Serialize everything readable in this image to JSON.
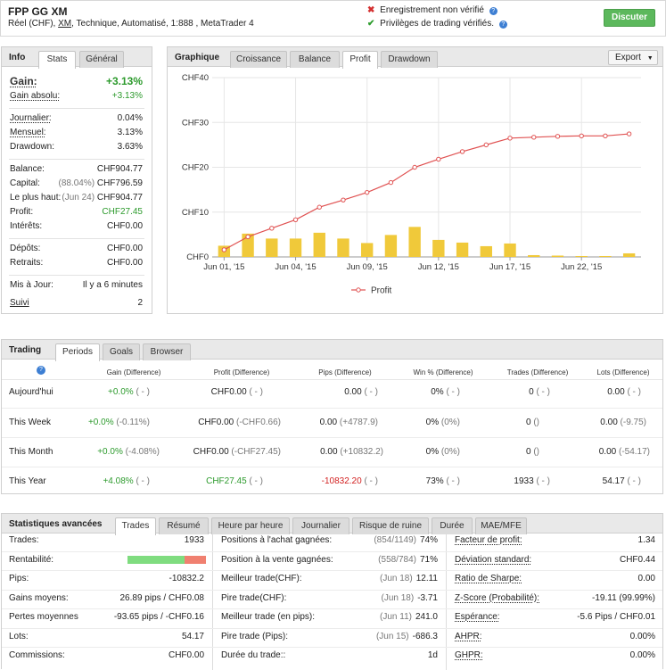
{
  "header": {
    "title": "FPP GG XM",
    "subtitle_prefix": "Réel (CHF), ",
    "broker": "XM",
    "subtitle_suffix": ", Technique, Automatisé, 1:888 , MetaTrader 4",
    "status_unverified": "Enregistrement non vérifié",
    "status_verified": "Privilèges de trading vérifiés.",
    "discuss_button": "Discuter"
  },
  "info": {
    "tabs": [
      "Info",
      "Stats",
      "Général"
    ],
    "gain_label": "Gain:",
    "gain_value": "+3.13%",
    "gain_abs_label": "Gain absolu:",
    "gain_abs_value": "+3.13%",
    "daily_label": "Journalier:",
    "daily_value": "0.04%",
    "monthly_label": "Mensuel:",
    "monthly_value": "3.13%",
    "drawdown_label": "Drawdown:",
    "drawdown_value": "3.63%",
    "balance_label": "Balance:",
    "balance_value": "CHF904.77",
    "capital_label": "Capital:",
    "capital_pct": "(88.04%)",
    "capital_value": "CHF796.59",
    "highest_label": "Le plus haut:",
    "highest_date": "(Jun 24)",
    "highest_value": "CHF904.77",
    "profit_label": "Profit:",
    "profit_value": "CHF27.45",
    "interest_label": "Intérêts:",
    "interest_value": "CHF0.00",
    "deposits_label": "Dépôts:",
    "deposits_value": "CHF0.00",
    "withdrawals_label": "Retraits:",
    "withdrawals_value": "CHF0.00",
    "updated_label": "Mis à Jour:",
    "updated_value": "Il y a 6 minutes",
    "follow_label": "Suivi",
    "follow_value": "2"
  },
  "graph": {
    "title": "Graphique",
    "tabs": [
      "Croissance",
      "Balance",
      "Profit",
      "Drawdown"
    ],
    "active_tab": "Profit",
    "export_label": "Export"
  },
  "chart_data": {
    "type": "line",
    "x": [
      "Jun 01, '15",
      "Jun 02, '15",
      "Jun 03, '15",
      "Jun 04, '15",
      "Jun 05, '15",
      "Jun 08, '15",
      "Jun 09, '15",
      "Jun 10, '15",
      "Jun 11, '15",
      "Jun 12, '15",
      "Jun 15, '15",
      "Jun 16, '15",
      "Jun 17, '15",
      "Jun 18, '15",
      "Jun 19, '15",
      "Jun 22, '15",
      "Jun 23, '15",
      "Jun 24, '15"
    ],
    "x_ticks": [
      "Jun 01, '15",
      "Jun 04, '15",
      "Jun 09, '15",
      "Jun 12, '15",
      "Jun 17, '15",
      "Jun 22, '15"
    ],
    "y_ticks": [
      "CHF0",
      "CHF10",
      "CHF20",
      "CHF30",
      "CHF40"
    ],
    "ylim": [
      0,
      40
    ],
    "series": [
      {
        "name": "Profit",
        "type": "line",
        "color": "#e05252",
        "values": [
          1.6,
          4.5,
          6.4,
          8.3,
          11.1,
          12.7,
          14.4,
          16.6,
          20.0,
          21.8,
          23.5,
          25.0,
          26.5,
          26.7,
          26.9,
          27.0,
          27.0,
          27.45
        ]
      },
      {
        "type": "bar",
        "color": "#f0c93a",
        "values": [
          2.5,
          5.2,
          4.1,
          4.1,
          5.4,
          4.1,
          3.1,
          4.9,
          6.7,
          3.8,
          3.2,
          2.4,
          3.0,
          0.4,
          0.3,
          0.2,
          0.2,
          0.8
        ]
      }
    ],
    "legend": "bottom-center"
  },
  "trading": {
    "title": "Trading",
    "tabs": [
      "Periods",
      "Goals",
      "Browser"
    ],
    "help_icon": "?",
    "columns": [
      "Gain (Difference)",
      "Profit (Difference)",
      "Pips (Difference)",
      "Win % (Difference)",
      "Trades (Difference)",
      "Lots (Difference)"
    ],
    "rows": [
      {
        "label": "Aujourd'hui",
        "gain": "+0.0%",
        "gain_diff": "( - )",
        "profit": "CHF0.00",
        "profit_diff": "( - )",
        "pips": "0.00",
        "pips_diff": "( - )",
        "win": "0%",
        "win_diff": "( - )",
        "trades": "0",
        "trades_diff": "( - )",
        "lots": "0.00",
        "lots_diff": "( - )"
      },
      {
        "label": "This Week",
        "gain": "+0.0%",
        "gain_diff": "(-0.11%)",
        "profit": "CHF0.00",
        "profit_diff": "(-CHF0.66)",
        "pips": "0.00",
        "pips_diff": "(+4787.9)",
        "win": "0%",
        "win_diff": "(0%)",
        "trades": "0",
        "trades_diff": "()",
        "lots": "0.00",
        "lots_diff": "(-9.75)"
      },
      {
        "label": "This Month",
        "gain": "+0.0%",
        "gain_diff": "(-4.08%)",
        "profit": "CHF0.00",
        "profit_diff": "(-CHF27.45)",
        "pips": "0.00",
        "pips_diff": "(+10832.2)",
        "win": "0%",
        "win_diff": "(0%)",
        "trades": "0",
        "trades_diff": "()",
        "lots": "0.00",
        "lots_diff": "(-54.17)"
      },
      {
        "label": "This Year",
        "gain": "+4.08%",
        "gain_diff": "( - )",
        "profit": "CHF27.45",
        "profit_diff": "( - )",
        "pips": "-10832.20",
        "pips_diff": "( - )",
        "win": "73%",
        "win_diff": "( - )",
        "trades": "1933",
        "trades_diff": "( - )",
        "lots": "54.17",
        "lots_diff": "( - )"
      }
    ]
  },
  "advanced": {
    "title": "Statistiques avancées",
    "tabs": [
      "Trades",
      "Résumé",
      "Heure par heure",
      "Journalier",
      "Risque de ruine",
      "Durée",
      "MAE/MFE"
    ],
    "col1": [
      {
        "label": "Trades:",
        "value": "1933"
      },
      {
        "label": "Rentabilité:",
        "value": "",
        "win_fraction": 0.73
      },
      {
        "label": "Pips:",
        "value": "-10832.2"
      },
      {
        "label": "Gains moyens:",
        "value": "26.89 pips / CHF0.08"
      },
      {
        "label": "Pertes moyennes",
        "value": "-93.65 pips / -CHF0.16"
      },
      {
        "label": "Lots:",
        "value": "54.17"
      },
      {
        "label": "Commissions:",
        "value": "CHF0.00"
      }
    ],
    "col2": [
      {
        "label": "Positions à l'achat gagnées:",
        "detail": "(854/1149)",
        "value": "74%"
      },
      {
        "label": "Position à la vente gagnées:",
        "detail": "(558/784)",
        "value": "71%"
      },
      {
        "label": "Meilleur trade(CHF):",
        "detail": "(Jun 18)",
        "value": "12.11"
      },
      {
        "label": "Pire trade(CHF):",
        "detail": "(Jun 18)",
        "value": "-3.71"
      },
      {
        "label": "Meilleur trade (en pips):",
        "detail": "(Jun 11)",
        "value": "241.0"
      },
      {
        "label": "Pire trade (Pips):",
        "detail": "(Jun 15)",
        "value": "-686.3"
      },
      {
        "label": "Durée du trade::",
        "detail": "",
        "value": "1d"
      }
    ],
    "col3": [
      {
        "label": "Facteur de profit:",
        "value": "1.34"
      },
      {
        "label": "Déviation standard:",
        "value": "CHF0.44"
      },
      {
        "label": "Ratio de Sharpe:",
        "value": "0.00"
      },
      {
        "label": "Z-Score (Probabilité):",
        "value": "-19.11 (99.99%)"
      },
      {
        "label": "Espérance:",
        "value": "-5.6 Pips / CHF0.01"
      },
      {
        "label": "AHPR:",
        "value": "0.00%"
      },
      {
        "label": "GHPR:",
        "value": "0.00%"
      }
    ]
  }
}
